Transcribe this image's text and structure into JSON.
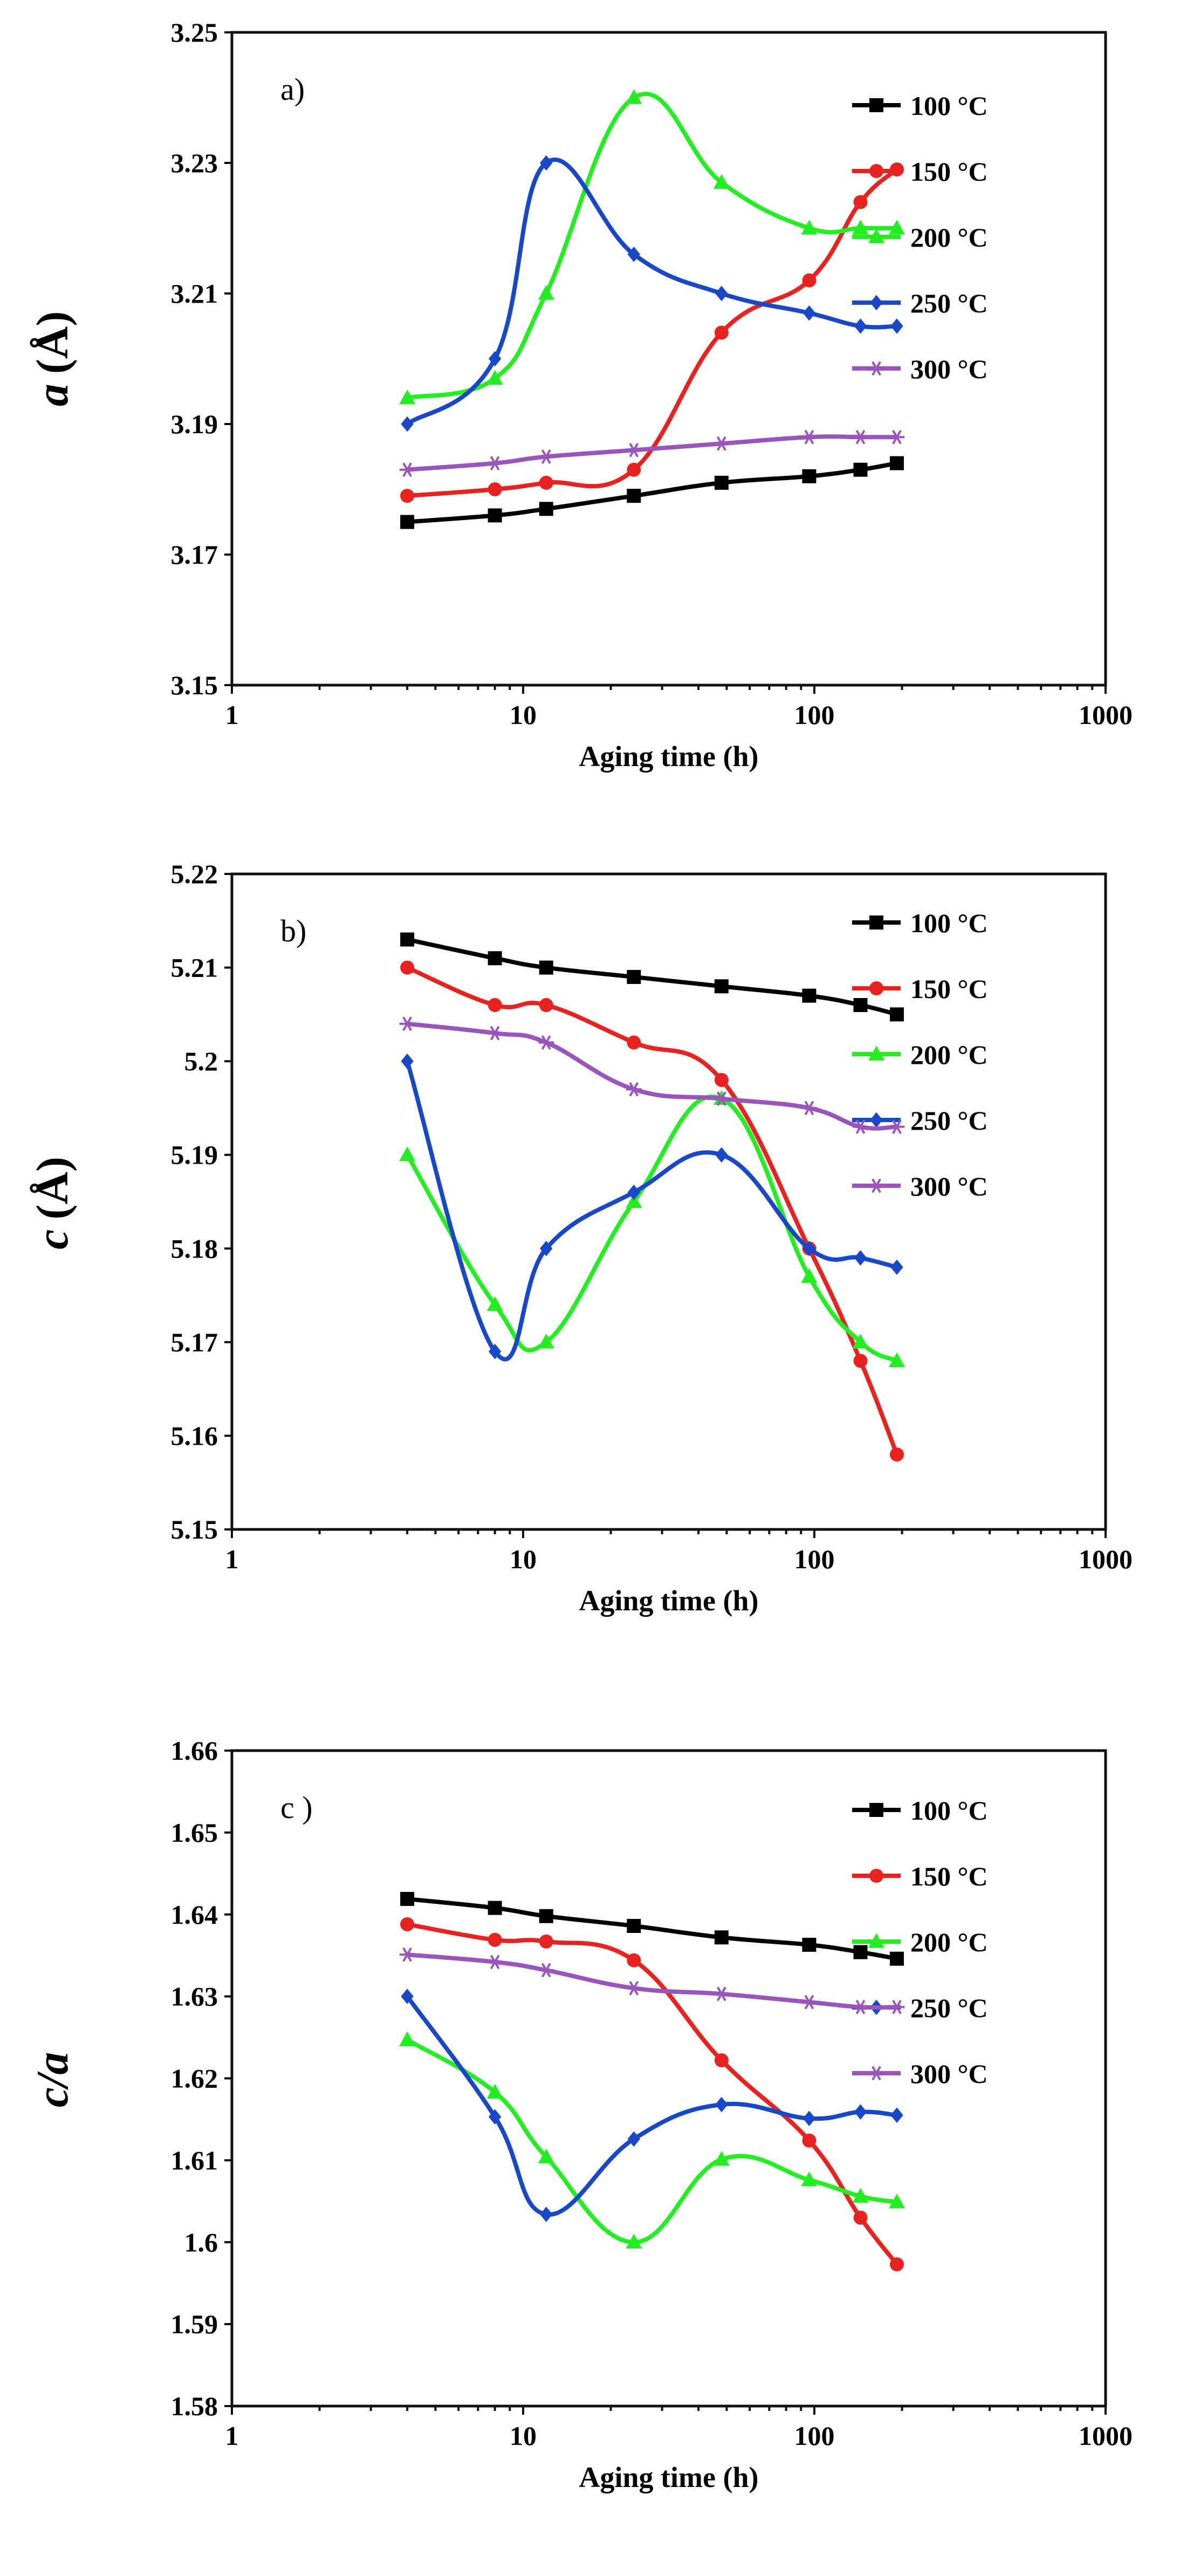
{
  "chart_data": [
    {
      "type": "line",
      "panel_label": "a)",
      "xlabel": "Aging time (h)",
      "ylabel_symbol": "a",
      "ylabel_unit": "(Å)",
      "xscale": "log",
      "xlim": [
        1,
        1000
      ],
      "ylim": [
        3.15,
        3.25
      ],
      "xtick_labels": [
        "1",
        "10",
        "100",
        "1000"
      ],
      "ytick_labels": [
        "3.15",
        "3.17",
        "3.19",
        "3.21",
        "3.23",
        "3.25"
      ],
      "legend_position": "right",
      "x": [
        4,
        8,
        12,
        24,
        48,
        96,
        144,
        192
      ],
      "series": [
        {
          "name": "100 °C",
          "values": [
            3.175,
            3.176,
            3.177,
            3.179,
            3.181,
            3.182,
            3.183,
            3.184
          ]
        },
        {
          "name": "150 °C",
          "values": [
            3.179,
            3.18,
            3.181,
            3.183,
            3.204,
            3.212,
            3.224,
            3.229
          ]
        },
        {
          "name": "200 °C",
          "values": [
            3.194,
            3.197,
            3.21,
            3.24,
            3.227,
            3.22,
            3.22,
            3.22
          ]
        },
        {
          "name": "250 °C",
          "values": [
            3.19,
            3.2,
            3.23,
            3.216,
            3.21,
            3.207,
            3.205,
            3.205
          ]
        },
        {
          "name": "300 °C",
          "values": [
            3.183,
            3.184,
            3.185,
            3.186,
            3.187,
            3.188,
            3.188,
            3.188
          ]
        }
      ]
    },
    {
      "type": "line",
      "panel_label": "b)",
      "xlabel": "Aging time (h)",
      "ylabel_symbol": "c",
      "ylabel_unit": "(Å)",
      "xscale": "log",
      "xlim": [
        1,
        1000
      ],
      "ylim": [
        5.15,
        5.22
      ],
      "xtick_labels": [
        "1",
        "10",
        "100",
        "1000"
      ],
      "ytick_labels": [
        "5.15",
        "5.16",
        "5.17",
        "5.18",
        "5.19",
        "5.2",
        "5.21",
        "5.22"
      ],
      "legend_position": "right",
      "x": [
        4,
        8,
        12,
        24,
        48,
        96,
        144,
        192
      ],
      "series": [
        {
          "name": "100 °C",
          "values": [
            5.213,
            5.211,
            5.21,
            5.209,
            5.208,
            5.207,
            5.206,
            5.205
          ]
        },
        {
          "name": "150 °C",
          "values": [
            5.21,
            5.206,
            5.206,
            5.202,
            5.198,
            5.18,
            5.168,
            5.158
          ]
        },
        {
          "name": "200 °C",
          "values": [
            5.19,
            5.174,
            5.17,
            5.185,
            5.196,
            5.177,
            5.17,
            5.168
          ]
        },
        {
          "name": "250 °C",
          "values": [
            5.2,
            5.169,
            5.18,
            5.186,
            5.19,
            5.18,
            5.179,
            5.178
          ]
        },
        {
          "name": "300 °C",
          "values": [
            5.204,
            5.203,
            5.202,
            5.197,
            5.196,
            5.195,
            5.193,
            5.193
          ]
        }
      ]
    },
    {
      "type": "line",
      "panel_label": "c )",
      "xlabel": "Aging time (h)",
      "ylabel_symbol": "c/a",
      "ylabel_unit": "",
      "xscale": "log",
      "xlim": [
        1,
        1000
      ],
      "ylim": [
        1.58,
        1.66
      ],
      "xtick_labels": [
        "1",
        "10",
        "100",
        "1000"
      ],
      "ytick_labels": [
        "1.58",
        "1.59",
        "1.6",
        "1.61",
        "1.62",
        "1.63",
        "1.64",
        "1.65",
        "1.66"
      ],
      "legend_position": "right",
      "x": [
        4,
        8,
        12,
        24,
        48,
        96,
        144,
        192
      ],
      "series": [
        {
          "name": "100 °C",
          "values": [
            1.6419,
            1.6408,
            1.6398,
            1.6386,
            1.6372,
            1.6363,
            1.6354,
            1.6346
          ]
        },
        {
          "name": "150 °C",
          "values": [
            1.6388,
            1.6369,
            1.6367,
            1.6344,
            1.6222,
            1.6124,
            1.603,
            1.5973
          ]
        },
        {
          "name": "200 °C",
          "values": [
            1.6247,
            1.6183,
            1.6104,
            1.6,
            1.6101,
            1.6076,
            1.6056,
            1.6049
          ]
        },
        {
          "name": "250 °C",
          "values": [
            1.63,
            1.6153,
            1.6034,
            1.6126,
            1.6168,
            1.6151,
            1.6159,
            1.6155
          ]
        },
        {
          "name": "300 °C",
          "values": [
            1.6351,
            1.6342,
            1.6332,
            1.631,
            1.6303,
            1.6293,
            1.6287,
            1.6287
          ]
        }
      ]
    }
  ],
  "series_styles": [
    {
      "color": "#000000",
      "marker": "square"
    },
    {
      "color": "#e8231f",
      "marker": "circle"
    },
    {
      "color": "#22ee22",
      "marker": "triangle"
    },
    {
      "color": "#1848c8",
      "marker": "diamond"
    },
    {
      "color": "#9955bb",
      "marker": "star"
    }
  ]
}
